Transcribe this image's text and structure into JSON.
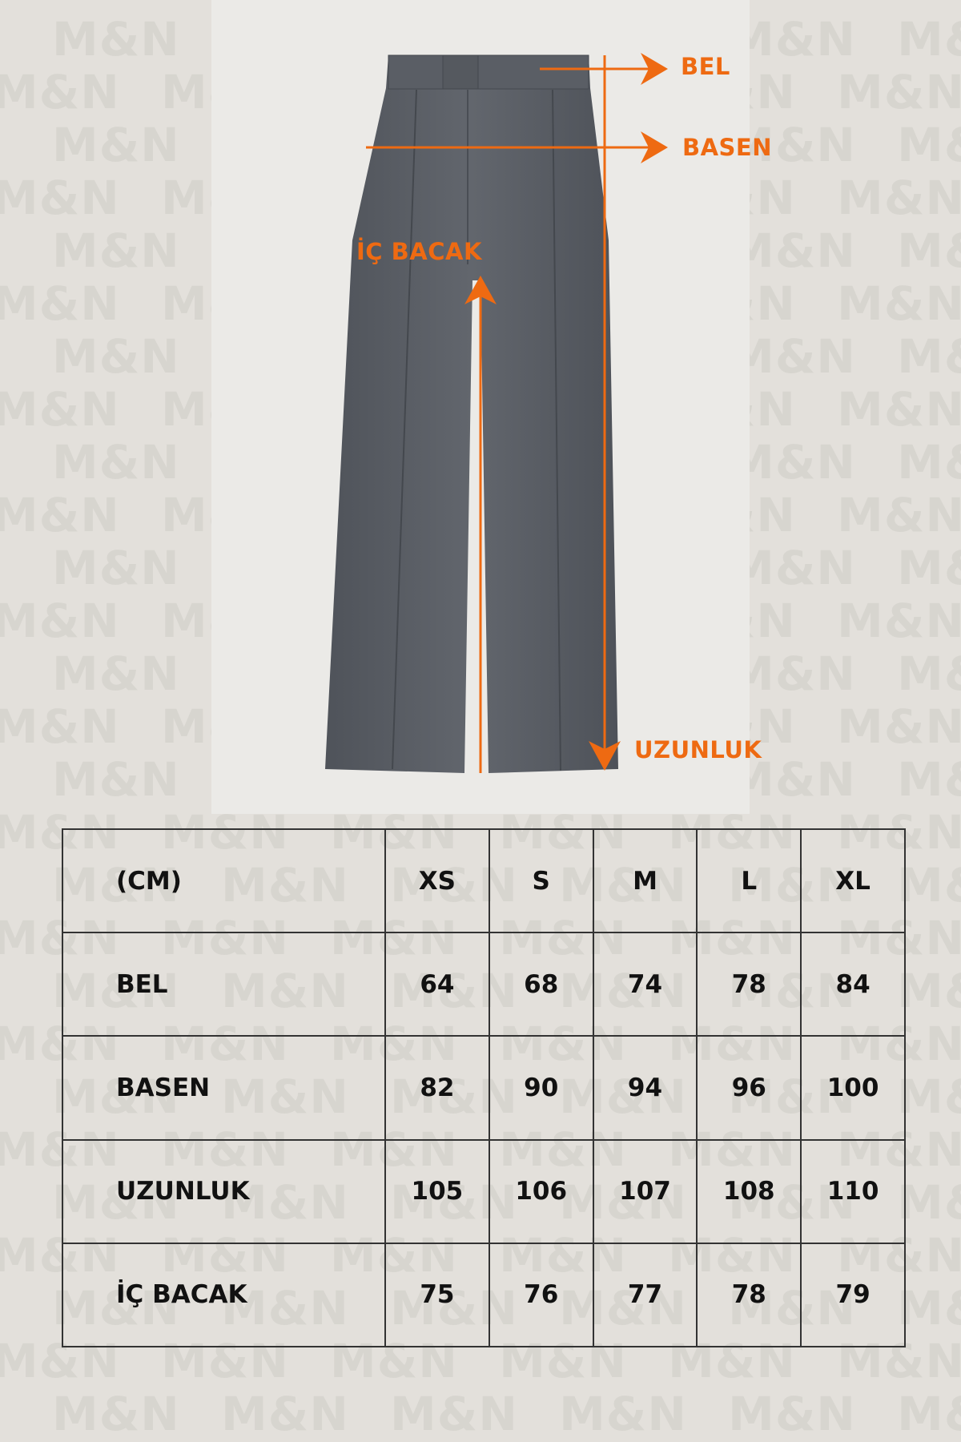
{
  "watermark": "M&N",
  "diagram": {
    "labels": {
      "waist": "BEL",
      "hip": "BASEN",
      "inseam": "İÇ BACAK",
      "length": "UZUNLUK"
    },
    "accent_color": "#ee6a12",
    "garment_color": "#5b5f66"
  },
  "size_table": {
    "unit_header": "(CM)",
    "sizes": [
      "XS",
      "S",
      "M",
      "L",
      "XL"
    ],
    "rows": [
      {
        "label": "BEL",
        "values": [
          "64",
          "68",
          "74",
          "78",
          "84"
        ]
      },
      {
        "label": "BASEN",
        "values": [
          "82",
          "90",
          "94",
          "96",
          "100"
        ]
      },
      {
        "label": "UZUNLUK",
        "values": [
          "105",
          "106",
          "107",
          "108",
          "110"
        ]
      },
      {
        "label": "İÇ BACAK",
        "values": [
          "75",
          "76",
          "77",
          "78",
          "79"
        ]
      }
    ]
  }
}
